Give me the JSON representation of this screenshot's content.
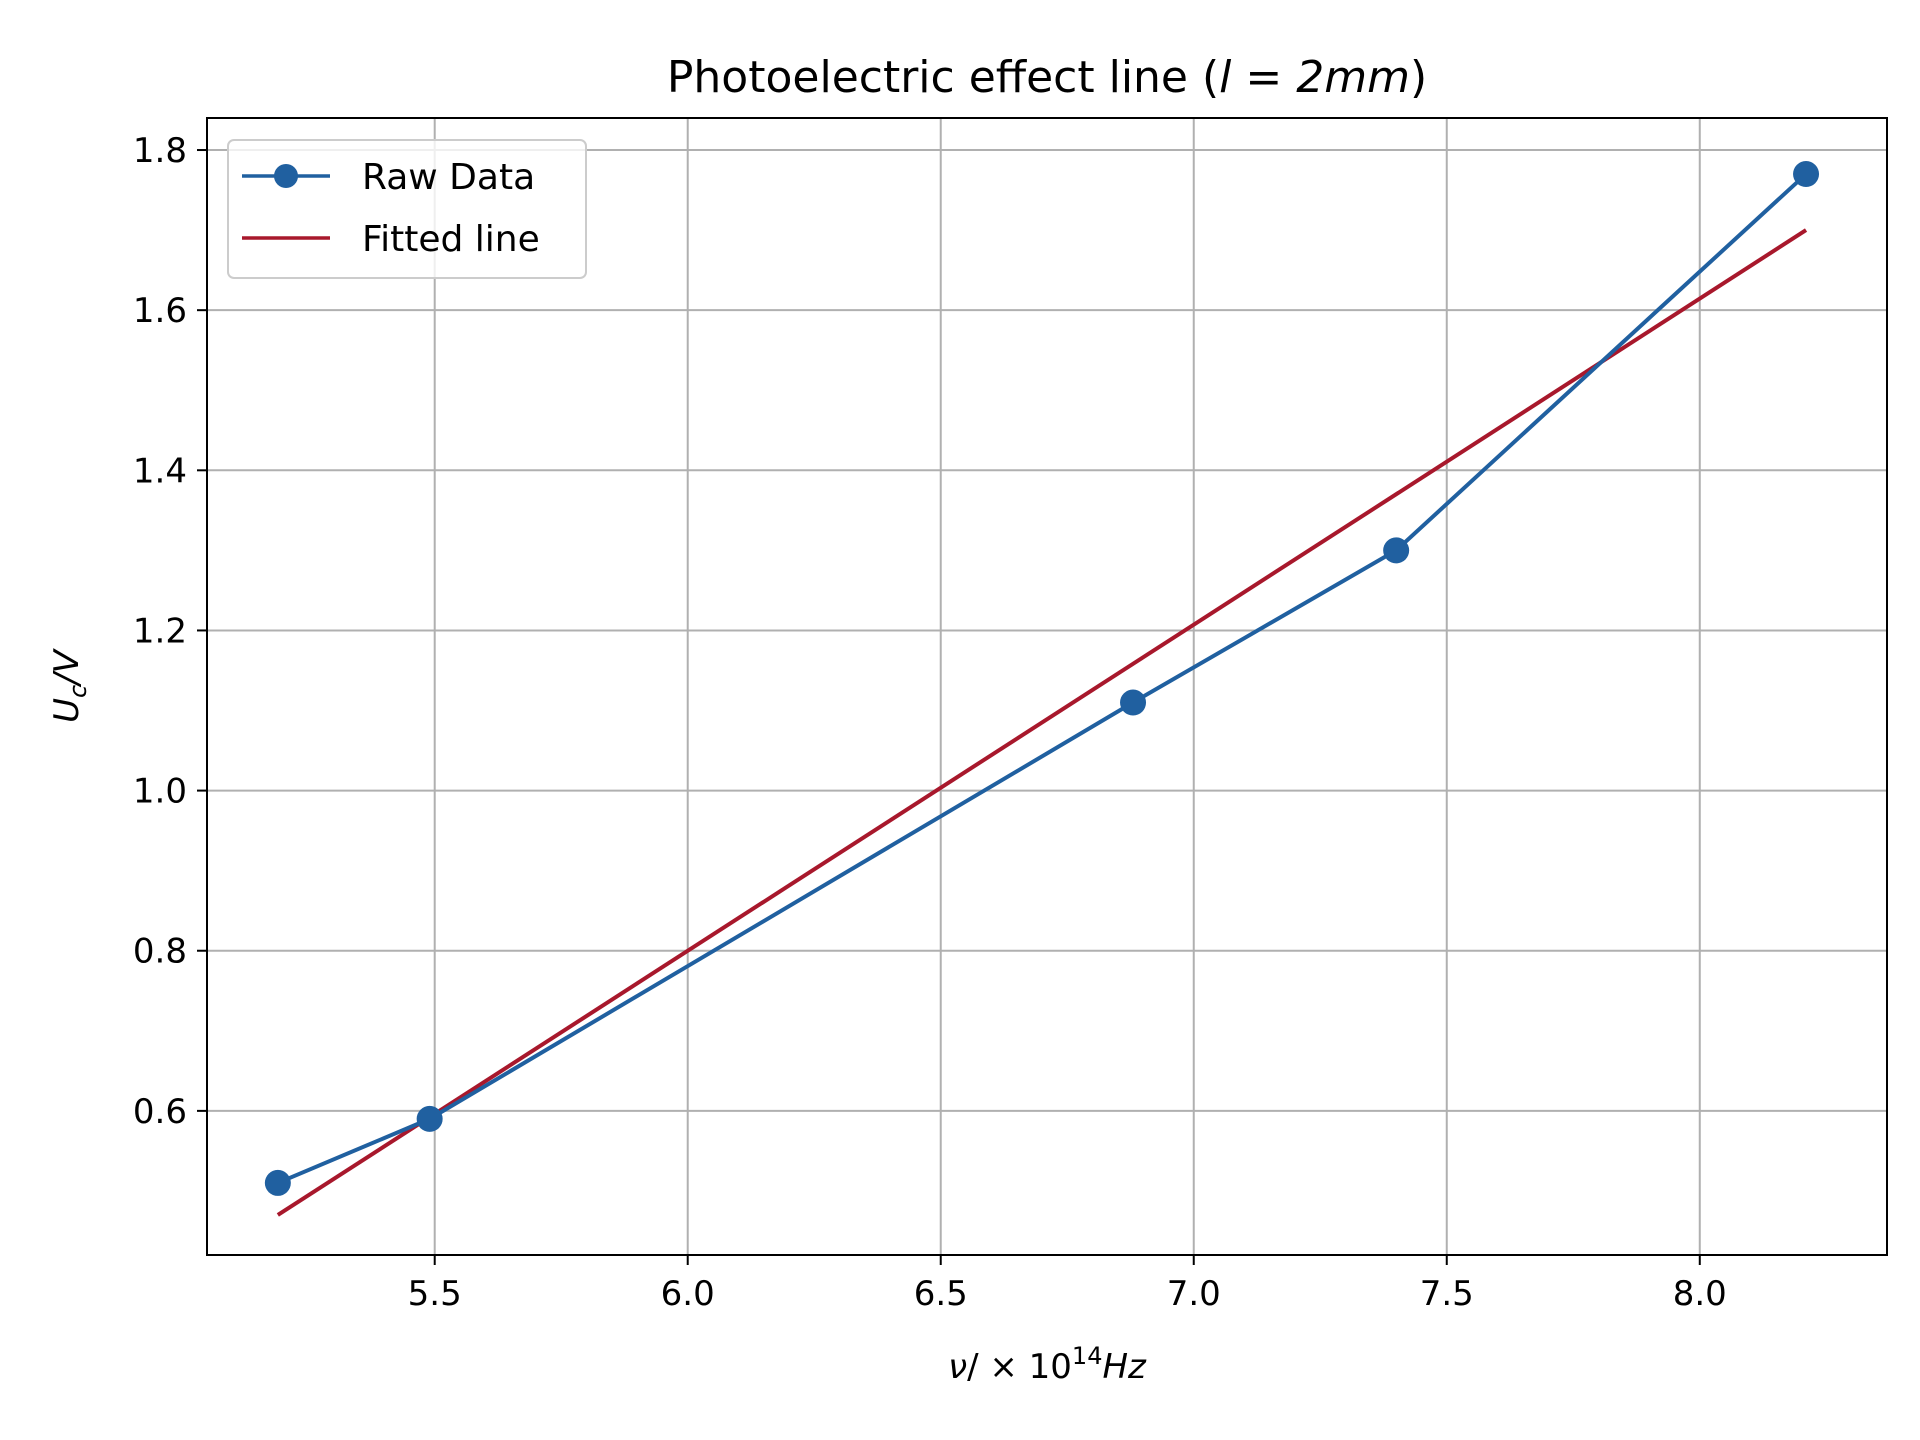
{
  "chart_data": {
    "type": "line",
    "title_parts": {
      "prefix": "Photoelectric effect line (",
      "math": "l = 2mm",
      "suffix": ")"
    },
    "xlabel_parts": {
      "nu": "ν",
      "mid": "/ × 10",
      "sup": "14",
      "unit": "Hz"
    },
    "ylabel_parts": {
      "U": "U",
      "sub": "c",
      "unit": "/V"
    },
    "xlim": [
      5.05,
      8.37
    ],
    "ylim": [
      0.42,
      1.84
    ],
    "xticks": [
      5.5,
      6.0,
      6.5,
      7.0,
      7.5,
      8.0
    ],
    "xtick_labels": [
      "5.5",
      "6.0",
      "6.5",
      "7.0",
      "7.5",
      "8.0"
    ],
    "yticks": [
      0.6,
      0.8,
      1.0,
      1.2,
      1.4,
      1.6,
      1.8
    ],
    "ytick_labels": [
      "0.6",
      "0.8",
      "1.0",
      "1.2",
      "1.4",
      "1.6",
      "1.8"
    ],
    "grid": true,
    "legend_position": "upper-left",
    "series": [
      {
        "name": "Raw Data",
        "color": "#2060a0",
        "marker": "circle",
        "x": [
          5.19,
          5.49,
          6.88,
          7.4,
          8.21
        ],
        "y": [
          0.51,
          0.59,
          1.11,
          1.3,
          1.77
        ]
      },
      {
        "name": "Fitted line",
        "color": "#a8182c",
        "marker": "none",
        "x": [
          5.19,
          8.21
        ],
        "y": [
          0.47,
          1.7
        ]
      }
    ]
  }
}
